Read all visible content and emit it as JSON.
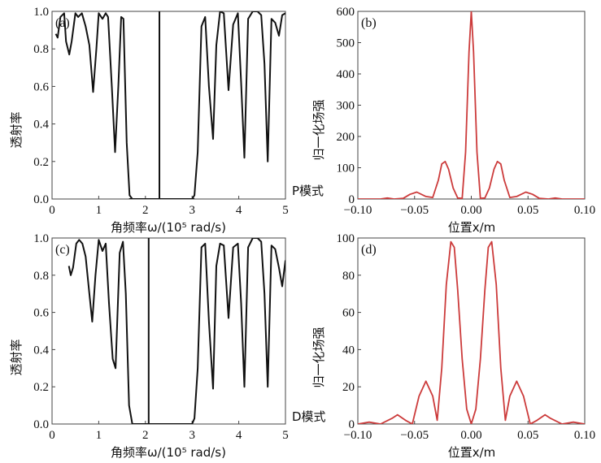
{
  "colors": {
    "transmission_curve": "#111111",
    "field_curve": "#cc3b3b",
    "axis": "#444444"
  },
  "mode_labels": {
    "p": "P模式",
    "d": "D模式"
  },
  "chart_data": [
    {
      "id": "a",
      "panel_label": "(a)",
      "type": "line",
      "xlabel": "角频率ω/(10⁵ rad/s)",
      "ylabel": "透射率",
      "xlim": [
        0,
        5
      ],
      "ylim": [
        0,
        1
      ],
      "xticks": [
        "0",
        "1",
        "2",
        "3",
        "4",
        "5"
      ],
      "yticks": [
        "0.0",
        "0.2",
        "0.4",
        "0.6",
        "0.8",
        "1.0"
      ],
      "bandgap": [
        1.65,
        3.05
      ],
      "defect_mode": 2.3,
      "series": [
        {
          "x": [
            0.08,
            0.12,
            0.18,
            0.26,
            0.3,
            0.37,
            0.42,
            0.5,
            0.56,
            0.64,
            0.72,
            0.8,
            0.88,
            0.95,
            1.0,
            1.08,
            1.15,
            1.2,
            1.28,
            1.35,
            1.42,
            1.48,
            1.53,
            1.6,
            1.66,
            1.72
          ],
          "y": [
            0.88,
            0.86,
            0.97,
            0.99,
            0.84,
            0.77,
            0.84,
            0.99,
            0.97,
            0.99,
            0.92,
            0.82,
            0.57,
            0.8,
            0.99,
            0.96,
            0.99,
            0.97,
            0.6,
            0.25,
            0.6,
            0.97,
            0.96,
            0.3,
            0.02,
            0.0
          ]
        },
        {
          "x": [
            3.0,
            3.05,
            3.12,
            3.2,
            3.28,
            3.36,
            3.45,
            3.52,
            3.6,
            3.68,
            3.78,
            3.88,
            3.98,
            4.05,
            4.12,
            4.2,
            4.3,
            4.4,
            4.48,
            4.55,
            4.62,
            4.7,
            4.78,
            4.86,
            4.93,
            5.0
          ],
          "y": [
            0.0,
            0.02,
            0.25,
            0.92,
            0.97,
            0.6,
            0.32,
            0.82,
            1.0,
            0.99,
            0.58,
            0.93,
            0.99,
            0.62,
            0.22,
            0.96,
            1.0,
            1.0,
            0.98,
            0.72,
            0.2,
            0.96,
            0.94,
            0.87,
            0.98,
            0.99
          ]
        }
      ]
    },
    {
      "id": "b",
      "panel_label": "(b)",
      "type": "line",
      "xlabel": "位置x/m",
      "ylabel": "归一化场强",
      "xlim": [
        -0.1,
        0.1
      ],
      "ylim": [
        0,
        600
      ],
      "xticks": [
        "−0.10",
        "−0.05",
        "0.00",
        "0.05",
        "0.10"
      ],
      "yticks": [
        "0",
        "100",
        "200",
        "300",
        "400",
        "500",
        "600"
      ],
      "series": [
        {
          "x": [
            -0.1,
            -0.08,
            -0.074,
            -0.068,
            -0.06,
            -0.054,
            -0.048,
            -0.04,
            -0.034,
            -0.029,
            -0.026,
            -0.023,
            -0.02,
            -0.016,
            -0.012,
            -0.008,
            -0.005,
            -0.002,
            0.0,
            0.002,
            0.005,
            0.008,
            0.012,
            0.016,
            0.02,
            0.023,
            0.026,
            0.029,
            0.034,
            0.04,
            0.048,
            0.054,
            0.06,
            0.068,
            0.074,
            0.08,
            0.1
          ],
          "y": [
            0,
            0,
            3,
            0,
            2,
            15,
            22,
            8,
            5,
            60,
            112,
            120,
            95,
            35,
            3,
            2,
            150,
            470,
            600,
            470,
            150,
            2,
            3,
            35,
            95,
            120,
            112,
            60,
            5,
            8,
            22,
            15,
            2,
            0,
            3,
            0,
            0
          ]
        }
      ]
    },
    {
      "id": "c",
      "panel_label": "(c)",
      "type": "line",
      "xlabel": "角频率ω/(10⁵ rad/s)",
      "ylabel": "透射率",
      "xlim": [
        0,
        5
      ],
      "ylim": [
        0,
        1
      ],
      "xticks": [
        "0",
        "1",
        "2",
        "3",
        "4",
        "5"
      ],
      "yticks": [
        "0.0",
        "0.2",
        "0.4",
        "0.6",
        "0.8",
        "1.0"
      ],
      "bandgap": [
        1.72,
        3.0
      ],
      "defect_mode": 2.07,
      "series": [
        {
          "x": [
            0.36,
            0.4,
            0.45,
            0.52,
            0.58,
            0.65,
            0.72,
            0.8,
            0.86,
            0.93,
            1.0,
            1.08,
            1.15,
            1.22,
            1.3,
            1.36,
            1.45,
            1.52,
            1.58,
            1.65,
            1.72
          ],
          "y": [
            0.85,
            0.8,
            0.84,
            0.97,
            0.99,
            0.97,
            0.9,
            0.7,
            0.55,
            0.8,
            0.99,
            0.93,
            0.97,
            0.65,
            0.35,
            0.3,
            0.92,
            0.98,
            0.7,
            0.1,
            0.0
          ]
        },
        {
          "x": [
            3.0,
            3.05,
            3.12,
            3.2,
            3.28,
            3.36,
            3.45,
            3.52,
            3.6,
            3.68,
            3.78,
            3.88,
            3.98,
            4.05,
            4.12,
            4.2,
            4.3,
            4.4,
            4.48,
            4.55,
            4.62,
            4.7,
            4.78,
            4.86,
            4.93,
            5.0
          ],
          "y": [
            0.0,
            0.03,
            0.3,
            0.95,
            0.97,
            0.55,
            0.19,
            0.85,
            0.97,
            0.96,
            0.57,
            0.95,
            0.97,
            0.65,
            0.2,
            0.95,
            1.0,
            1.0,
            0.98,
            0.7,
            0.2,
            0.96,
            0.94,
            0.84,
            0.74,
            0.88
          ]
        }
      ]
    },
    {
      "id": "d",
      "panel_label": "(d)",
      "type": "line",
      "xlabel": "位置x/m",
      "ylabel": "归一化场强",
      "xlim": [
        -0.1,
        0.1
      ],
      "ylim": [
        0,
        100
      ],
      "xticks": [
        "−0.10",
        "−0.05",
        "0.00",
        "0.05",
        "0.10"
      ],
      "yticks": [
        "0",
        "20",
        "40",
        "60",
        "80",
        "100"
      ],
      "series": [
        {
          "x": [
            -0.1,
            -0.09,
            -0.08,
            -0.07,
            -0.065,
            -0.058,
            -0.052,
            -0.046,
            -0.04,
            -0.034,
            -0.03,
            -0.026,
            -0.022,
            -0.018,
            -0.015,
            -0.012,
            -0.008,
            -0.004,
            0.0,
            0.004,
            0.008,
            0.012,
            0.015,
            0.018,
            0.022,
            0.026,
            0.03,
            0.034,
            0.04,
            0.046,
            0.052,
            0.058,
            0.065,
            0.07,
            0.08,
            0.09,
            0.1
          ],
          "y": [
            0,
            1,
            0,
            3,
            5,
            2,
            0,
            15,
            23,
            15,
            2,
            30,
            75,
            98,
            95,
            72,
            35,
            8,
            0,
            8,
            35,
            72,
            95,
            98,
            75,
            30,
            2,
            15,
            23,
            15,
            0,
            2,
            5,
            3,
            0,
            1,
            0
          ]
        }
      ]
    }
  ]
}
